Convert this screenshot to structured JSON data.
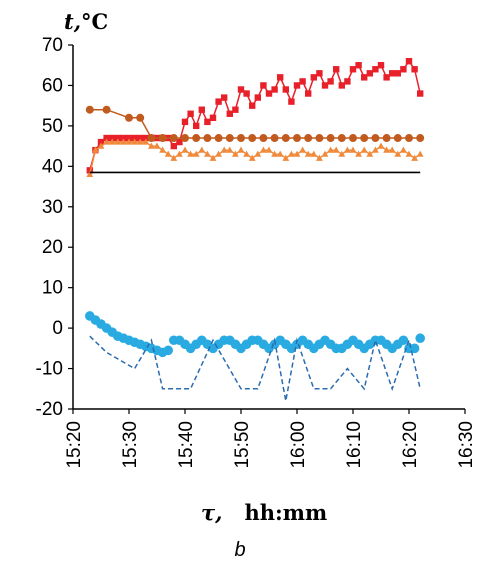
{
  "chart_data": {
    "type": "line",
    "ylabel_var": "t,",
    "ylabel_unit": "°C",
    "xlabel_var": "τ,",
    "xlabel_unit": "hh:mm",
    "caption": "b",
    "ylim": [
      -20,
      70
    ],
    "yticks": [
      -20,
      -10,
      0,
      10,
      20,
      30,
      40,
      50,
      60,
      70
    ],
    "xlim": [
      "15:20",
      "16:30"
    ],
    "xticks": [
      "15:20",
      "15:30",
      "15:40",
      "15:50",
      "16:00",
      "16:10",
      "16:20",
      "16:30"
    ],
    "grid": false,
    "legend": "none",
    "series": [
      {
        "style": "line-square",
        "color": "#e8202a",
        "x": [
          "15:23",
          "15:24",
          "15:25",
          "15:26",
          "15:27",
          "15:28",
          "15:29",
          "15:30",
          "15:31",
          "15:32",
          "15:33",
          "15:34",
          "15:35",
          "15:36",
          "15:37",
          "15:38",
          "15:39",
          "15:40",
          "15:41",
          "15:42",
          "15:43",
          "15:44",
          "15:45",
          "15:46",
          "15:47",
          "15:48",
          "15:49",
          "15:50",
          "15:51",
          "15:52",
          "15:53",
          "15:54",
          "15:55",
          "15:56",
          "15:57",
          "15:58",
          "15:59",
          "16:00",
          "16:01",
          "16:02",
          "16:03",
          "16:04",
          "16:05",
          "16:06",
          "16:07",
          "16:08",
          "16:09",
          "16:10",
          "16:11",
          "16:12",
          "16:13",
          "16:14",
          "16:15",
          "16:16",
          "16:17",
          "16:18",
          "16:19",
          "16:20",
          "16:21",
          "16:22"
        ],
        "y": [
          39,
          44,
          46,
          47,
          47,
          47,
          47,
          47,
          47,
          47,
          47,
          47,
          47,
          47,
          47,
          45,
          46,
          51,
          53,
          50,
          54,
          51,
          52,
          56,
          57,
          53,
          54,
          59,
          58,
          55,
          57,
          60,
          58,
          59,
          62,
          59,
          56,
          60,
          61,
          58,
          62,
          63,
          60,
          61,
          64,
          60,
          61,
          64,
          65,
          62,
          63,
          64,
          65,
          62,
          63,
          63,
          64,
          66,
          64,
          58
        ]
      },
      {
        "style": "line-circle",
        "color": "#c05a1e",
        "x": [
          "15:23",
          "15:26",
          "15:30",
          "15:32",
          "15:34",
          "15:36",
          "15:38",
          "15:40",
          "15:42",
          "15:44",
          "15:46",
          "15:48",
          "15:50",
          "15:52",
          "15:54",
          "15:56",
          "15:58",
          "16:00",
          "16:02",
          "16:04",
          "16:06",
          "16:08",
          "16:10",
          "16:12",
          "16:14",
          "16:16",
          "16:18",
          "16:20",
          "16:22"
        ],
        "y": [
          54,
          54,
          52,
          52,
          47,
          47,
          47,
          47,
          47,
          47,
          47,
          47,
          47,
          47,
          47,
          47,
          47,
          47,
          47,
          47,
          47,
          47,
          47,
          47,
          47,
          47,
          47,
          47,
          47
        ]
      },
      {
        "style": "line-triangle",
        "color": "#f08a3a",
        "x": [
          "15:23",
          "15:24",
          "15:25",
          "15:26",
          "15:27",
          "15:28",
          "15:29",
          "15:30",
          "15:31",
          "15:32",
          "15:33",
          "15:34",
          "15:35",
          "15:36",
          "15:37",
          "15:38",
          "15:39",
          "15:40",
          "15:41",
          "15:42",
          "15:43",
          "15:44",
          "15:45",
          "15:46",
          "15:47",
          "15:48",
          "15:49",
          "15:50",
          "15:51",
          "15:52",
          "15:53",
          "15:54",
          "15:55",
          "15:56",
          "15:57",
          "15:58",
          "15:59",
          "16:00",
          "16:01",
          "16:02",
          "16:03",
          "16:04",
          "16:05",
          "16:06",
          "16:07",
          "16:08",
          "16:09",
          "16:10",
          "16:11",
          "16:12",
          "16:13",
          "16:14",
          "16:15",
          "16:16",
          "16:17",
          "16:18",
          "16:19",
          "16:20",
          "16:21",
          "16:22"
        ],
        "y": [
          38,
          44,
          45,
          46,
          46,
          46,
          46,
          46,
          46,
          46,
          46,
          45,
          45,
          44,
          43,
          42,
          43,
          44,
          43,
          43,
          44,
          43,
          42,
          43,
          44,
          44,
          43,
          44,
          43,
          42,
          43,
          44,
          44,
          43,
          43,
          42,
          43,
          43,
          44,
          43,
          43,
          42,
          43,
          44,
          44,
          43,
          44,
          44,
          43,
          44,
          43,
          44,
          45,
          44,
          44,
          43,
          44,
          43,
          42,
          43
        ]
      },
      {
        "style": "line",
        "color": "#000000",
        "x": [
          "15:23",
          "16:22"
        ],
        "y": [
          38.5,
          38.5
        ]
      },
      {
        "style": "circle",
        "color": "#29abe2",
        "x": [
          "15:23",
          "15:24",
          "15:25",
          "15:26",
          "15:27",
          "15:28",
          "15:29",
          "15:30",
          "15:31",
          "15:32",
          "15:33",
          "15:34",
          "15:35",
          "15:36",
          "15:37",
          "15:38",
          "15:39",
          "15:40",
          "15:41",
          "15:42",
          "15:43",
          "15:44",
          "15:45",
          "15:46",
          "15:47",
          "15:48",
          "15:49",
          "15:50",
          "15:51",
          "15:52",
          "15:53",
          "15:54",
          "15:55",
          "15:56",
          "15:57",
          "15:58",
          "15:59",
          "16:00",
          "16:01",
          "16:02",
          "16:03",
          "16:04",
          "16:05",
          "16:06",
          "16:07",
          "16:08",
          "16:09",
          "16:10",
          "16:11",
          "16:12",
          "16:13",
          "16:14",
          "16:15",
          "16:16",
          "16:17",
          "16:18",
          "16:19",
          "16:20",
          "16:21",
          "16:22"
        ],
        "y": [
          3,
          2,
          1,
          0,
          -1,
          -2,
          -2.5,
          -3,
          -3.5,
          -4,
          -4.5,
          -5,
          -5.5,
          -6,
          -5.5,
          -3,
          -3,
          -4,
          -5,
          -4,
          -3,
          -4,
          -5,
          -4,
          -3,
          -3,
          -4,
          -5,
          -4,
          -3,
          -3,
          -4,
          -5,
          -4,
          -3,
          -4,
          -5,
          -4,
          -3,
          -4,
          -5,
          -4,
          -3,
          -4,
          -5,
          -5,
          -4,
          -3,
          -4,
          -5,
          -4,
          -3,
          -3,
          -4,
          -5,
          -4,
          -3,
          -5,
          -5,
          -2.5
        ]
      },
      {
        "style": "dashed",
        "color": "#2b6cb0",
        "x": [
          "15:23",
          "15:26",
          "15:31",
          "15:34",
          "15:36",
          "15:41",
          "15:45",
          "15:50",
          "15:53",
          "15:56",
          "15:58",
          "16:00",
          "16:03",
          "16:06",
          "16:09",
          "16:12",
          "16:14",
          "16:17",
          "16:20",
          "16:22"
        ],
        "y": [
          -2,
          -6,
          -10,
          -3,
          -15,
          -15,
          -3,
          -15,
          -15,
          -3,
          -18,
          -3,
          -15,
          -15,
          -10,
          -15,
          -3,
          -15,
          -3,
          -15
        ]
      }
    ]
  }
}
